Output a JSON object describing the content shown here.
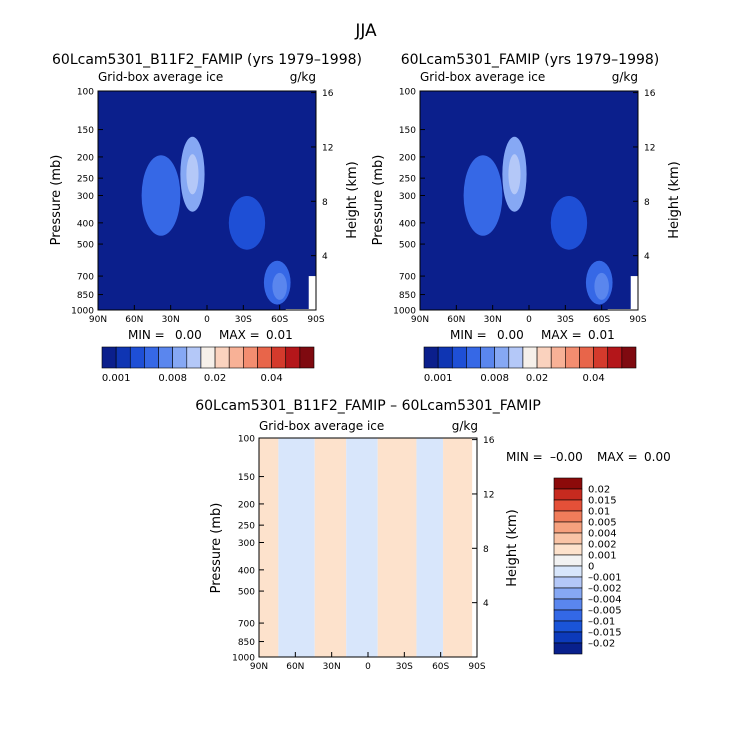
{
  "page": {
    "title": "JJA"
  },
  "colors": {
    "main_levels": [
      "#0b1f8c",
      "#0f35b3",
      "#1e4fd6",
      "#3668e6",
      "#5a86ee",
      "#86a8f4",
      "#b4c8f8",
      "#f6f0ea",
      "#fad2be",
      "#f8b196",
      "#f38d70",
      "#e8654a",
      "#d43a2c",
      "#b4161a",
      "#7f0a10"
    ],
    "diff_levels": [
      "#08208c",
      "#0c3aba",
      "#1a54d8",
      "#3368e6",
      "#5a86ee",
      "#86a8f4",
      "#b4c8f8",
      "#d8e6fb",
      "#f2f2f2",
      "#fde2cc",
      "#f9c4a6",
      "#f6a17e",
      "#f07c5a",
      "#e45038",
      "#c72a1f",
      "#8c0a0a"
    ]
  },
  "chart_data": [
    {
      "type": "heatmap",
      "title": "60Lcam5301_B11F2_FAMIP (yrs 1979–1998)",
      "subtitle_left": "Grid-box average ice",
      "subtitle_right": "g/kg",
      "xlabel": "",
      "ylabel": "Pressure (mb)",
      "ylabel_right": "Height (km)",
      "x_ticks": [
        "90N",
        "60N",
        "30N",
        "0",
        "30S",
        "60S",
        "90S"
      ],
      "y_ticks": [
        "100",
        "150",
        "200",
        "250",
        "300",
        "400",
        "500",
        "700",
        "850",
        "1000"
      ],
      "y_ticks_right": [
        "16",
        "12",
        "8",
        "4"
      ],
      "stats": {
        "min_label": "MIN =",
        "min": "0.00",
        "max_label": "MAX =",
        "max": "0.01"
      },
      "colorbar_labels": [
        "0.001",
        "0.008",
        "0.02",
        "0.04"
      ],
      "background_level": 0,
      "blobs": [
        {
          "lat": 38,
          "p": 300,
          "wlat": 16,
          "wp": 120,
          "level": 3
        },
        {
          "lat": 12,
          "p": 240,
          "wlat": 10,
          "wp": 90,
          "level": 5
        },
        {
          "lat": 12,
          "p": 240,
          "wlat": 5,
          "wp": 50,
          "level": 6
        },
        {
          "lat": -33,
          "p": 400,
          "wlat": 15,
          "wp": 110,
          "level": 2
        },
        {
          "lat": -58,
          "p": 750,
          "wlat": 11,
          "wp": 170,
          "level": 3
        },
        {
          "lat": -60,
          "p": 780,
          "wlat": 6,
          "wp": 110,
          "level": 4
        }
      ]
    },
    {
      "type": "heatmap",
      "title": "60Lcam5301_FAMIP (yrs 1979–1998)",
      "subtitle_left": "Grid-box average ice",
      "subtitle_right": "g/kg",
      "xlabel": "",
      "ylabel": "Pressure (mb)",
      "ylabel_right": "Height (km)",
      "x_ticks": [
        "90N",
        "60N",
        "30N",
        "0",
        "30S",
        "60S",
        "90S"
      ],
      "y_ticks": [
        "100",
        "150",
        "200",
        "250",
        "300",
        "400",
        "500",
        "700",
        "850",
        "1000"
      ],
      "y_ticks_right": [
        "16",
        "12",
        "8",
        "4"
      ],
      "stats": {
        "min_label": "MIN =",
        "min": "0.00",
        "max_label": "MAX =",
        "max": "0.01"
      },
      "colorbar_labels": [
        "0.001",
        "0.008",
        "0.02",
        "0.04"
      ],
      "background_level": 0,
      "blobs": [
        {
          "lat": 38,
          "p": 300,
          "wlat": 16,
          "wp": 120,
          "level": 3
        },
        {
          "lat": 12,
          "p": 240,
          "wlat": 10,
          "wp": 90,
          "level": 5
        },
        {
          "lat": 12,
          "p": 240,
          "wlat": 5,
          "wp": 50,
          "level": 6
        },
        {
          "lat": -33,
          "p": 400,
          "wlat": 15,
          "wp": 110,
          "level": 2
        },
        {
          "lat": -58,
          "p": 750,
          "wlat": 11,
          "wp": 170,
          "level": 3
        },
        {
          "lat": -60,
          "p": 780,
          "wlat": 6,
          "wp": 110,
          "level": 4
        }
      ]
    },
    {
      "type": "heatmap",
      "title": "60Lcam5301_B11F2_FAMIP – 60Lcam5301_FAMIP",
      "subtitle_left": "Grid-box average ice",
      "subtitle_right": "g/kg",
      "xlabel": "",
      "ylabel": "Pressure (mb)",
      "ylabel_right": "Height (km)",
      "x_ticks": [
        "90N",
        "60N",
        "30N",
        "0",
        "30S",
        "60S",
        "90S"
      ],
      "y_ticks": [
        "100",
        "150",
        "200",
        "250",
        "300",
        "400",
        "500",
        "700",
        "850",
        "1000"
      ],
      "y_ticks_right": [
        "16",
        "12",
        "8",
        "4"
      ],
      "stats": {
        "min_label": "MIN =",
        "min": "–0.00",
        "max_label": "MAX =",
        "max": "0.00"
      },
      "colorbar_labels": [
        "0.02",
        "0.015",
        "0.01",
        "0.005",
        "0.004",
        "0.002",
        "0.001",
        "0",
        "–0.001",
        "–0.002",
        "–0.004",
        "–0.005",
        "–0.01",
        "–0.015",
        "–0.02"
      ],
      "bands": [
        {
          "lat0": 90,
          "lat1": 74,
          "level": 9
        },
        {
          "lat0": 74,
          "lat1": 44,
          "level": 7
        },
        {
          "lat0": 44,
          "lat1": 18,
          "level": 9
        },
        {
          "lat0": 18,
          "lat1": -8,
          "level": 7
        },
        {
          "lat0": -8,
          "lat1": -40,
          "level": 9
        },
        {
          "lat0": -40,
          "lat1": -62,
          "level": 7
        },
        {
          "lat0": -62,
          "lat1": -90,
          "level": 9
        }
      ]
    }
  ]
}
